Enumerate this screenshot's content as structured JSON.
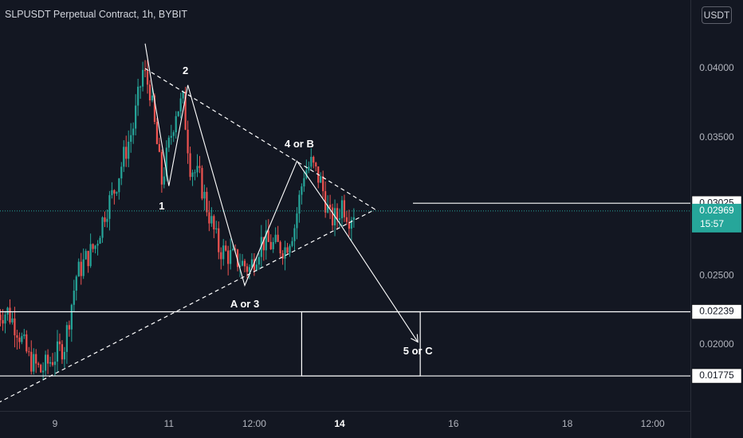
{
  "header": {
    "title": "SLPUSDT Perpetual Contract, 1h, BYBIT",
    "currency": "USDT"
  },
  "colors": {
    "background": "#131722",
    "up": "#26a69a",
    "down": "#ef5350",
    "drawing": "#ffffff",
    "axis_text": "#b2b5be",
    "last_price_bg": "#26a69a"
  },
  "chart_data": {
    "type": "candlestick",
    "symbol": "SLPUSDT",
    "interval": "1h",
    "exchange": "BYBIT",
    "ylim": [
      0.0148,
      0.0435
    ],
    "price_ticks": [
      "0.04000",
      "0.03500",
      "0.02500",
      "0.02000"
    ],
    "price_tick_values": [
      0.04,
      0.035,
      0.025,
      0.02
    ],
    "time_ticks": [
      {
        "label": "9",
        "t": 0,
        "bold": false
      },
      {
        "label": "11",
        "t": 48,
        "bold": false
      },
      {
        "label": "12:00",
        "t": 84,
        "bold": false
      },
      {
        "label": "14",
        "t": 120,
        "bold": true
      },
      {
        "label": "16",
        "t": 168,
        "bold": false
      },
      {
        "label": "18",
        "t": 216,
        "bold": false
      },
      {
        "label": "12:00",
        "t": 252,
        "bold": false
      }
    ],
    "candle_anchors": [
      [
        -24,
        0.0222
      ],
      [
        -20,
        0.0224
      ],
      [
        -16,
        0.0212
      ],
      [
        -11,
        0.019
      ],
      [
        -6,
        0.0181
      ],
      [
        0,
        0.0192
      ],
      [
        4,
        0.02
      ],
      [
        9,
        0.025
      ],
      [
        13,
        0.0262
      ],
      [
        17,
        0.0272
      ],
      [
        21,
        0.0296
      ],
      [
        25,
        0.0312
      ],
      [
        29,
        0.0336
      ],
      [
        33,
        0.0358
      ],
      [
        37,
        0.0398
      ],
      [
        40,
        0.0385
      ],
      [
        45,
        0.0318
      ],
      [
        51,
        0.037
      ],
      [
        54,
        0.0376
      ],
      [
        57,
        0.033
      ],
      [
        61,
        0.032
      ],
      [
        64,
        0.03
      ],
      [
        69,
        0.027
      ],
      [
        73,
        0.0265
      ],
      [
        78,
        0.026
      ],
      [
        82,
        0.0255
      ],
      [
        87,
        0.0275
      ],
      [
        92,
        0.0272
      ],
      [
        97,
        0.027
      ],
      [
        101,
        0.0286
      ],
      [
        105,
        0.0325
      ],
      [
        108,
        0.0331
      ],
      [
        112,
        0.0318
      ],
      [
        116,
        0.0291
      ],
      [
        119,
        0.0292
      ],
      [
        121,
        0.0303
      ],
      [
        124,
        0.0293
      ],
      [
        126,
        0.0297
      ]
    ],
    "levels": [
      {
        "label": "0.03025",
        "price": 0.03025
      },
      {
        "label": "0.02239",
        "price": 0.02239
      },
      {
        "label": "0.01775",
        "price": 0.01775
      }
    ],
    "last_price": {
      "label": "0.02969",
      "price": 0.02969,
      "countdown": "15:57"
    },
    "wave_path": [
      [
        38,
        0.0418
      ],
      [
        48,
        0.0315
      ],
      [
        56,
        0.0388
      ],
      [
        80,
        0.0243
      ],
      [
        102,
        0.0333
      ],
      [
        120,
        0.0288
      ],
      [
        153,
        0.0202
      ]
    ],
    "triangle_upper": [
      [
        38,
        0.04
      ],
      [
        135,
        0.0298
      ]
    ],
    "triangle_lower": [
      [
        -24,
        0.0158
      ],
      [
        135,
        0.0298
      ]
    ],
    "target_box": {
      "t1": 104,
      "t2": 154,
      "p1": 0.02239,
      "p2": 0.01775
    },
    "annotations": [
      {
        "text": "1",
        "t": 45,
        "price": 0.03
      },
      {
        "text": "2",
        "t": 55,
        "price": 0.0398
      },
      {
        "text": "4 or B",
        "t": 103,
        "price": 0.0345
      },
      {
        "text": "A or 3",
        "t": 80,
        "price": 0.0229
      },
      {
        "text": "5 or C",
        "t": 153,
        "price": 0.0195
      }
    ]
  }
}
